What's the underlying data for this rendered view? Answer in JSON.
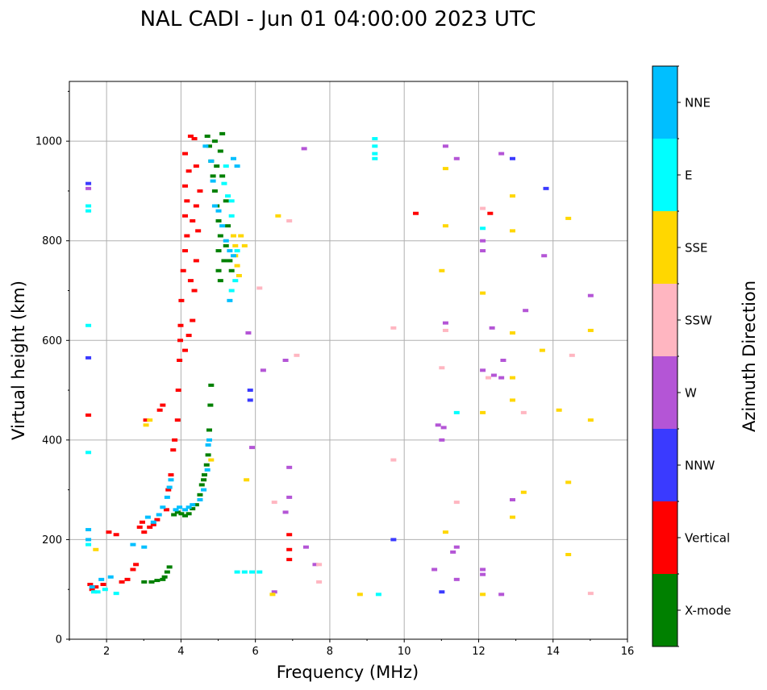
{
  "chart_data": {
    "type": "scatter",
    "title": "NAL CADI - Jun 01 04:00:00 2023 UTC",
    "xlabel": "Frequency (MHz)",
    "ylabel": "Virtual height (km)",
    "xlim": [
      1,
      16
    ],
    "ylim": [
      0,
      1120
    ],
    "xticks": [
      2,
      4,
      6,
      8,
      10,
      12,
      14,
      16
    ],
    "yticks": [
      0,
      200,
      400,
      600,
      800,
      1000
    ],
    "grid": true,
    "colorbar": {
      "label": "Azimuth Direction",
      "categories": [
        {
          "name": "X-mode",
          "color": "#008000"
        },
        {
          "name": "Vertical",
          "color": "#ff0000"
        },
        {
          "name": "NNW",
          "color": "#3a3aff"
        },
        {
          "name": "W",
          "color": "#b455d6"
        },
        {
          "name": "SSW",
          "color": "#ffb6c1"
        },
        {
          "name": "SSE",
          "color": "#ffd700"
        },
        {
          "name": "E",
          "color": "#00ffff"
        },
        {
          "name": "NNE",
          "color": "#00bfff"
        }
      ]
    },
    "series": [
      {
        "name": "X-mode",
        "points": [
          [
            3.0,
            115
          ],
          [
            3.2,
            115
          ],
          [
            3.35,
            118
          ],
          [
            3.5,
            120
          ],
          [
            3.55,
            125
          ],
          [
            3.62,
            135
          ],
          [
            3.68,
            145
          ],
          [
            3.8,
            250
          ],
          [
            3.9,
            255
          ],
          [
            4.0,
            252
          ],
          [
            4.1,
            248
          ],
          [
            4.2,
            252
          ],
          [
            4.3,
            262
          ],
          [
            4.4,
            270
          ],
          [
            4.5,
            290
          ],
          [
            4.62,
            330
          ],
          [
            4.68,
            350
          ],
          [
            4.72,
            370
          ],
          [
            4.75,
            420
          ],
          [
            4.78,
            470
          ],
          [
            4.8,
            510
          ],
          [
            4.55,
            310
          ],
          [
            4.6,
            320
          ],
          [
            4.7,
            1010
          ],
          [
            4.75,
            990
          ],
          [
            4.8,
            960
          ],
          [
            4.85,
            930
          ],
          [
            4.9,
            900
          ],
          [
            4.95,
            870
          ],
          [
            5.0,
            840
          ],
          [
            5.05,
            810
          ],
          [
            5.0,
            780
          ],
          [
            5.0,
            740
          ],
          [
            5.05,
            720
          ],
          [
            5.15,
            760
          ],
          [
            5.2,
            790
          ],
          [
            5.25,
            830
          ],
          [
            5.2,
            880
          ],
          [
            5.1,
            930
          ],
          [
            5.05,
            980
          ],
          [
            5.1,
            1015
          ],
          [
            5.3,
            760
          ],
          [
            5.35,
            740
          ],
          [
            4.9,
            1000
          ],
          [
            4.95,
            950
          ]
        ]
      },
      {
        "name": "Vertical",
        "points": [
          [
            1.5,
            450
          ],
          [
            1.55,
            110
          ],
          [
            1.6,
            100
          ],
          [
            1.7,
            105
          ],
          [
            1.9,
            110
          ],
          [
            2.05,
            215
          ],
          [
            2.25,
            210
          ],
          [
            2.4,
            115
          ],
          [
            2.55,
            120
          ],
          [
            2.7,
            140
          ],
          [
            2.78,
            150
          ],
          [
            2.88,
            225
          ],
          [
            2.95,
            235
          ],
          [
            3.0,
            215
          ],
          [
            3.05,
            440
          ],
          [
            3.15,
            225
          ],
          [
            3.25,
            230
          ],
          [
            3.35,
            240
          ],
          [
            3.42,
            460
          ],
          [
            3.5,
            470
          ],
          [
            3.6,
            260
          ],
          [
            3.65,
            300
          ],
          [
            3.72,
            330
          ],
          [
            3.78,
            380
          ],
          [
            3.82,
            400
          ],
          [
            3.9,
            440
          ],
          [
            3.92,
            500
          ],
          [
            3.95,
            560
          ],
          [
            3.97,
            600
          ],
          [
            3.98,
            630
          ],
          [
            4.0,
            680
          ],
          [
            4.05,
            740
          ],
          [
            4.1,
            780
          ],
          [
            4.15,
            810
          ],
          [
            4.1,
            850
          ],
          [
            4.15,
            880
          ],
          [
            4.1,
            910
          ],
          [
            4.2,
            940
          ],
          [
            4.1,
            975
          ],
          [
            4.25,
            1010
          ],
          [
            4.35,
            1005
          ],
          [
            4.3,
            840
          ],
          [
            4.25,
            720
          ],
          [
            4.35,
            700
          ],
          [
            4.4,
            760
          ],
          [
            4.45,
            820
          ],
          [
            4.4,
            870
          ],
          [
            4.5,
            900
          ],
          [
            4.4,
            950
          ],
          [
            4.3,
            640
          ],
          [
            4.2,
            610
          ],
          [
            4.1,
            580
          ],
          [
            6.9,
            210
          ],
          [
            6.9,
            180
          ],
          [
            6.9,
            160
          ],
          [
            10.3,
            855
          ],
          [
            12.3,
            855
          ]
        ]
      },
      {
        "name": "NNW",
        "points": [
          [
            1.5,
            915
          ],
          [
            1.5,
            565
          ],
          [
            5.85,
            500
          ],
          [
            5.85,
            480
          ],
          [
            9.7,
            200
          ],
          [
            11.0,
            95
          ],
          [
            12.9,
            965
          ],
          [
            13.8,
            905
          ]
        ]
      },
      {
        "name": "W",
        "points": [
          [
            1.5,
            905
          ],
          [
            5.8,
            615
          ],
          [
            5.9,
            385
          ],
          [
            6.2,
            540
          ],
          [
            6.8,
            560
          ],
          [
            6.9,
            345
          ],
          [
            6.9,
            285
          ],
          [
            6.8,
            255
          ],
          [
            7.3,
            985
          ],
          [
            7.35,
            185
          ],
          [
            7.6,
            150
          ],
          [
            10.9,
            430
          ],
          [
            11.0,
            400
          ],
          [
            11.05,
            425
          ],
          [
            11.1,
            990
          ],
          [
            11.1,
            635
          ],
          [
            11.3,
            175
          ],
          [
            11.4,
            965
          ],
          [
            11.4,
            185
          ],
          [
            11.4,
            120
          ],
          [
            12.1,
            800
          ],
          [
            12.1,
            780
          ],
          [
            12.1,
            540
          ],
          [
            12.1,
            140
          ],
          [
            12.1,
            130
          ],
          [
            12.35,
            625
          ],
          [
            12.4,
            530
          ],
          [
            12.6,
            975
          ],
          [
            12.65,
            560
          ],
          [
            12.6,
            525
          ],
          [
            12.6,
            90
          ],
          [
            12.9,
            280
          ],
          [
            13.25,
            660
          ],
          [
            13.75,
            770
          ],
          [
            15.0,
            690
          ],
          [
            10.8,
            140
          ],
          [
            6.5,
            95
          ]
        ]
      },
      {
        "name": "SSW",
        "points": [
          [
            6.5,
            275
          ],
          [
            6.1,
            705
          ],
          [
            6.9,
            840
          ],
          [
            7.1,
            570
          ],
          [
            7.7,
            150
          ],
          [
            7.7,
            115
          ],
          [
            9.7,
            625
          ],
          [
            9.7,
            360
          ],
          [
            11.0,
            545
          ],
          [
            11.1,
            620
          ],
          [
            11.4,
            275
          ],
          [
            12.1,
            865
          ],
          [
            12.25,
            525
          ],
          [
            13.2,
            455
          ],
          [
            14.5,
            570
          ],
          [
            15.0,
            92
          ]
        ]
      },
      {
        "name": "SSE",
        "points": [
          [
            1.7,
            180
          ],
          [
            3.05,
            430
          ],
          [
            3.15,
            440
          ],
          [
            4.8,
            360
          ],
          [
            5.4,
            810
          ],
          [
            5.45,
            790
          ],
          [
            5.45,
            770
          ],
          [
            5.5,
            750
          ],
          [
            5.55,
            730
          ],
          [
            5.6,
            810
          ],
          [
            5.7,
            790
          ],
          [
            5.75,
            320
          ],
          [
            6.6,
            850
          ],
          [
            6.45,
            90
          ],
          [
            8.8,
            90
          ],
          [
            11.0,
            740
          ],
          [
            11.1,
            945
          ],
          [
            11.1,
            830
          ],
          [
            11.1,
            215
          ],
          [
            12.1,
            695
          ],
          [
            12.1,
            455
          ],
          [
            12.1,
            90
          ],
          [
            12.9,
            890
          ],
          [
            12.9,
            820
          ],
          [
            12.9,
            615
          ],
          [
            12.9,
            525
          ],
          [
            12.9,
            480
          ],
          [
            12.9,
            245
          ],
          [
            13.2,
            295
          ],
          [
            13.7,
            580
          ],
          [
            14.15,
            460
          ],
          [
            14.4,
            845
          ],
          [
            14.4,
            315
          ],
          [
            14.4,
            170
          ],
          [
            15.0,
            620
          ],
          [
            15.0,
            440
          ]
        ]
      },
      {
        "name": "E",
        "points": [
          [
            1.5,
            870
          ],
          [
            1.5,
            860
          ],
          [
            1.5,
            630
          ],
          [
            1.5,
            375
          ],
          [
            1.5,
            190
          ],
          [
            1.65,
            95
          ],
          [
            1.75,
            95
          ],
          [
            1.95,
            100
          ],
          [
            2.25,
            92
          ],
          [
            5.35,
            700
          ],
          [
            5.45,
            720
          ],
          [
            5.5,
            780
          ],
          [
            5.35,
            850
          ],
          [
            5.25,
            890
          ],
          [
            5.35,
            880
          ],
          [
            5.15,
            915
          ],
          [
            5.2,
            950
          ],
          [
            5.5,
            135
          ],
          [
            5.7,
            135
          ],
          [
            5.9,
            135
          ],
          [
            6.1,
            135
          ],
          [
            9.2,
            1005
          ],
          [
            9.2,
            990
          ],
          [
            9.2,
            975
          ],
          [
            9.2,
            965
          ],
          [
            9.3,
            90
          ],
          [
            11.4,
            455
          ],
          [
            12.1,
            825
          ]
        ]
      },
      {
        "name": "NNE",
        "points": [
          [
            1.5,
            220
          ],
          [
            1.5,
            200
          ],
          [
            1.6,
            105
          ],
          [
            1.85,
            120
          ],
          [
            2.1,
            125
          ],
          [
            2.7,
            190
          ],
          [
            3.0,
            185
          ],
          [
            3.1,
            245
          ],
          [
            3.25,
            235
          ],
          [
            3.4,
            250
          ],
          [
            3.5,
            265
          ],
          [
            3.62,
            285
          ],
          [
            3.68,
            305
          ],
          [
            3.72,
            320
          ],
          [
            3.85,
            260
          ],
          [
            3.95,
            265
          ],
          [
            4.1,
            260
          ],
          [
            4.2,
            265
          ],
          [
            4.3,
            270
          ],
          [
            4.5,
            280
          ],
          [
            4.6,
            300
          ],
          [
            4.7,
            340
          ],
          [
            4.72,
            390
          ],
          [
            4.75,
            400
          ],
          [
            4.65,
            990
          ],
          [
            4.8,
            960
          ],
          [
            4.85,
            920
          ],
          [
            4.9,
            870
          ],
          [
            5.0,
            860
          ],
          [
            5.1,
            830
          ],
          [
            5.2,
            800
          ],
          [
            5.3,
            780
          ],
          [
            5.4,
            770
          ],
          [
            5.3,
            680
          ],
          [
            5.5,
            950
          ],
          [
            5.4,
            965
          ]
        ]
      }
    ]
  }
}
